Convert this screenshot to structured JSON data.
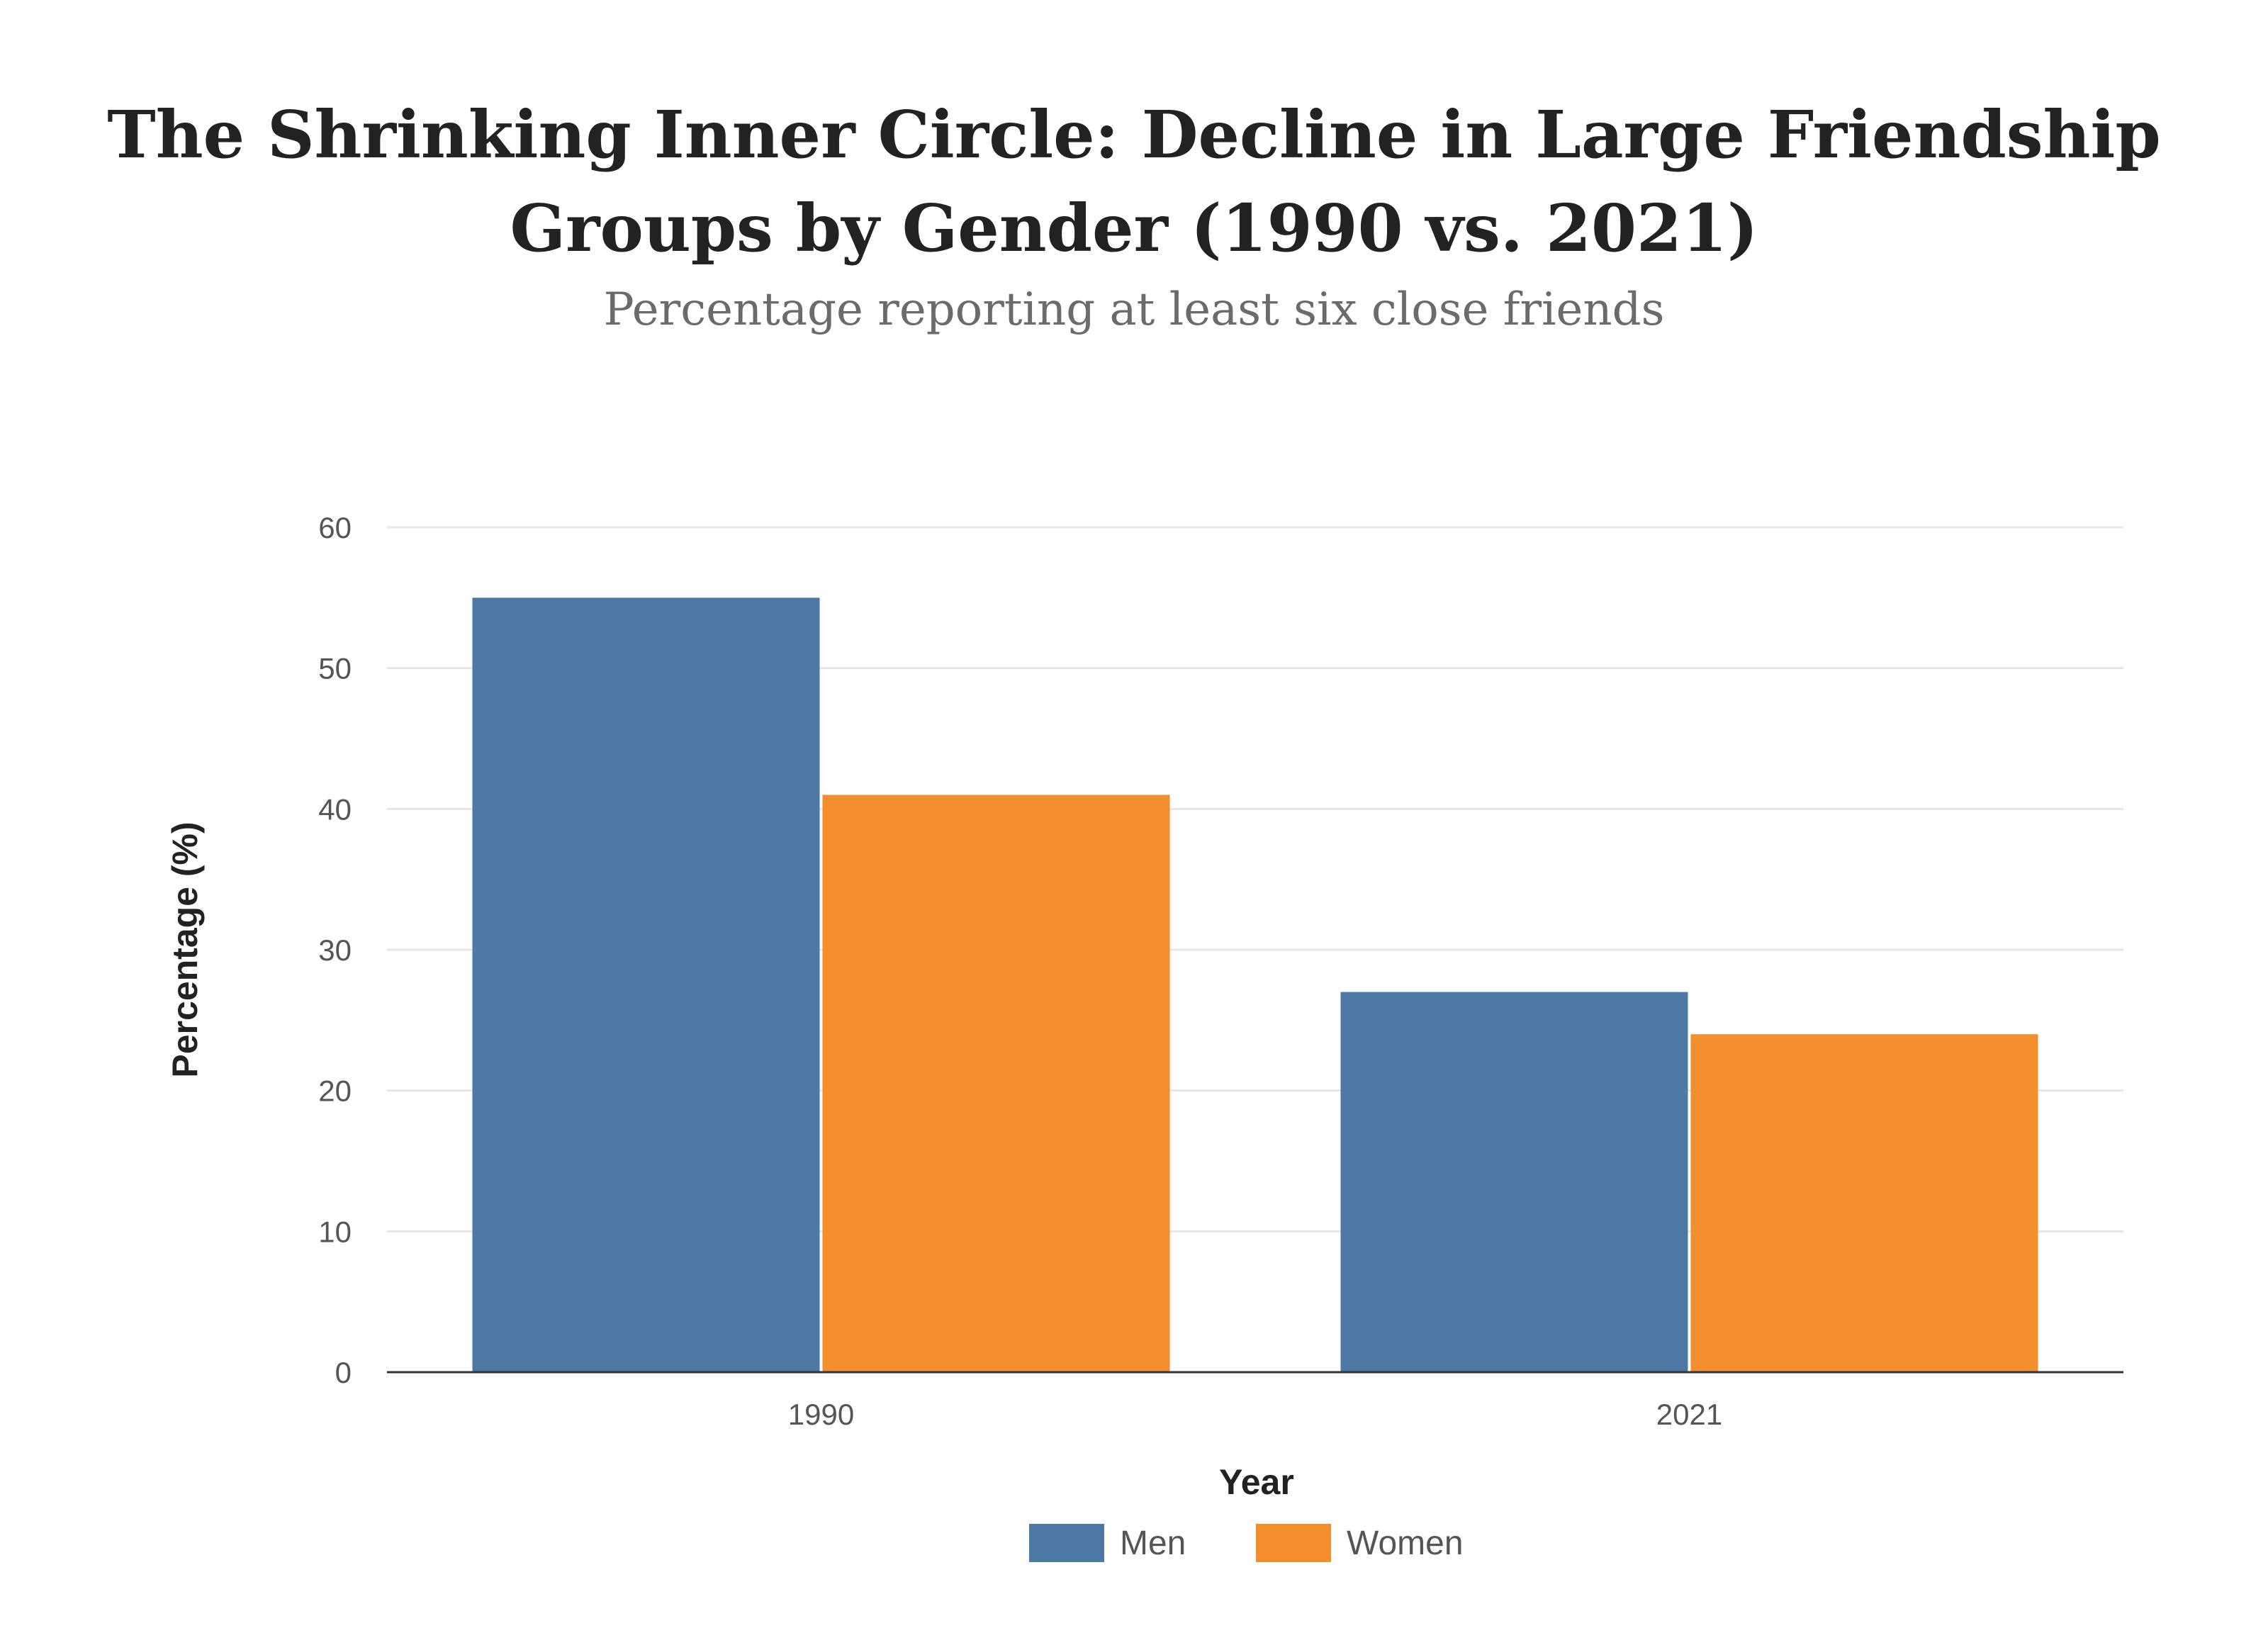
{
  "chart_data": {
    "type": "bar",
    "title_lines": [
      "The Shrinking Inner Circle: Decline in Large Friendship",
      "Groups by Gender (1990 vs. 2021)"
    ],
    "subtitle": "Percentage reporting at least six close friends",
    "xlabel": "Year",
    "ylabel": "Percentage (%)",
    "categories": [
      "1990",
      "2021"
    ],
    "series": [
      {
        "name": "Men",
        "color": "#4e79a7",
        "values": [
          55,
          27
        ]
      },
      {
        "name": "Women",
        "color": "#f28e2b",
        "values": [
          41,
          24
        ]
      }
    ],
    "ylim": [
      0,
      60
    ],
    "yticks": [
      "0",
      "10",
      "20",
      "30",
      "40",
      "50",
      "60"
    ],
    "grid": true,
    "legend_position": "bottom-center"
  }
}
